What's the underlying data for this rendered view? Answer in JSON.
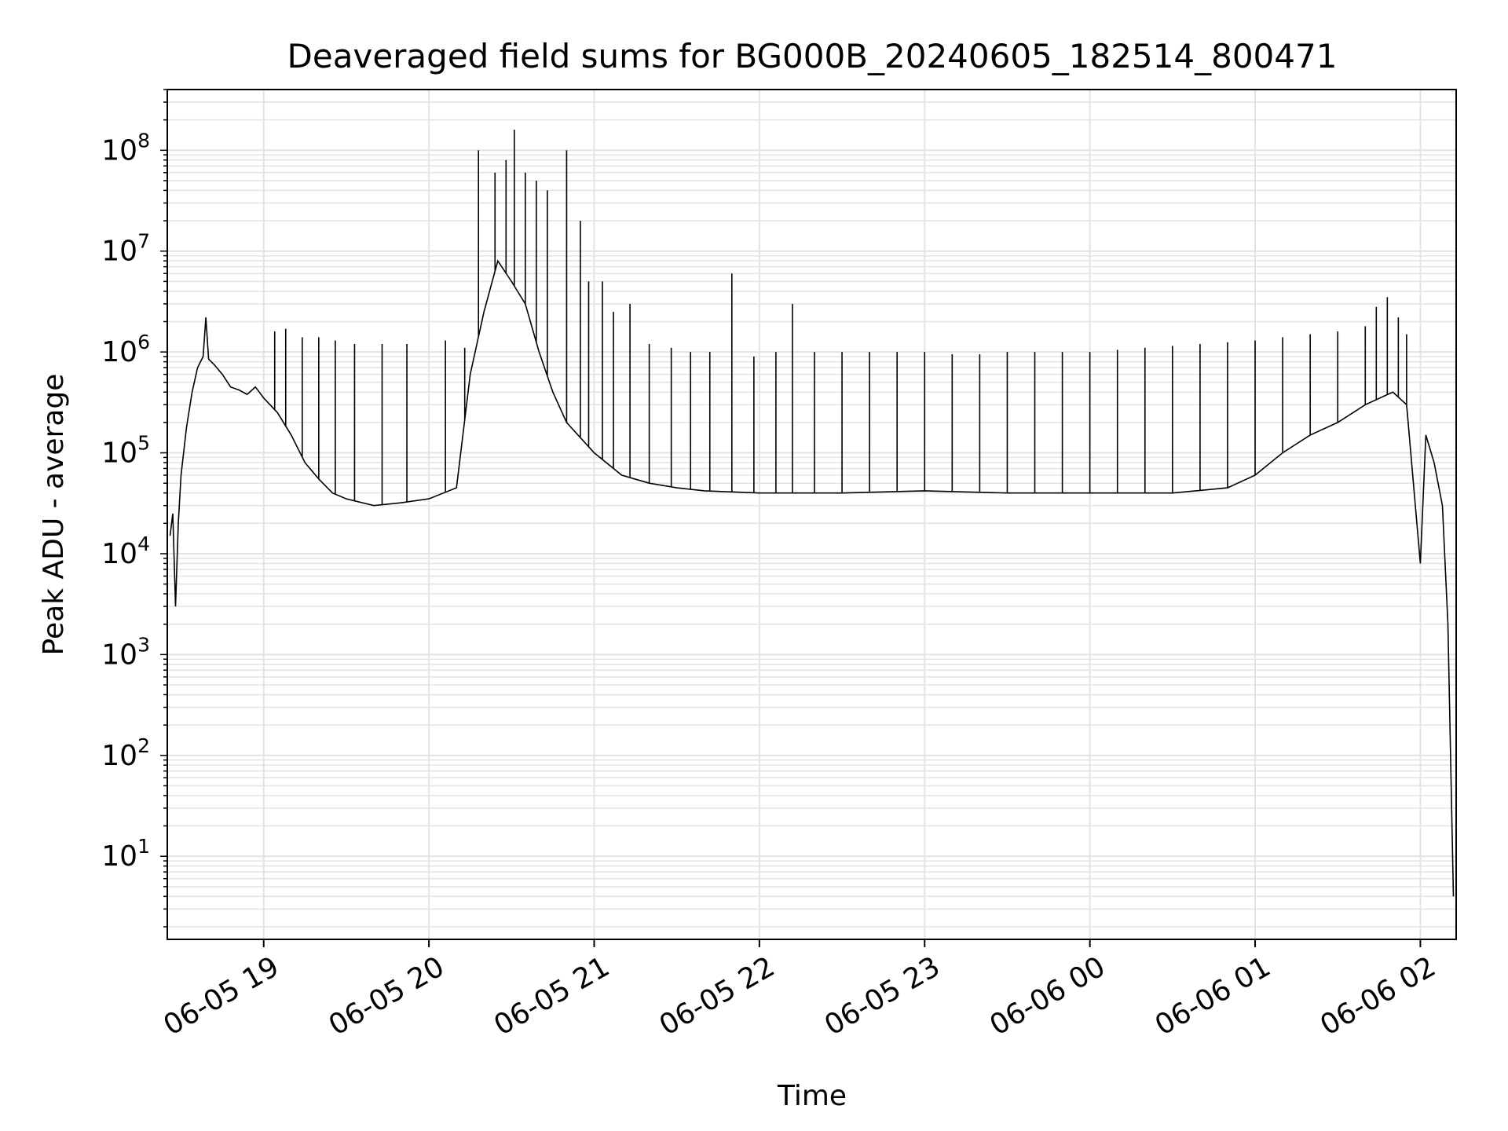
{
  "chart_data": {
    "type": "line",
    "title": "Deaveraged field sums for BG000B_20240605_182514_800471",
    "xlabel": "Time",
    "ylabel": "Peak ADU - average",
    "yscale": "log",
    "ylim": [
      1.5,
      400000000
    ],
    "xlim": [
      "06-05 18:25",
      "06-06 02:13"
    ],
    "grid": true,
    "line_color": "#000000",
    "x_ticks": [
      "06-05 19",
      "06-05 20",
      "06-05 21",
      "06-05 22",
      "06-05 23",
      "06-06 00",
      "06-06 01",
      "06-06 02"
    ],
    "y_ticks": [
      {
        "base": "10",
        "exp": "1"
      },
      {
        "base": "10",
        "exp": "2"
      },
      {
        "base": "10",
        "exp": "3"
      },
      {
        "base": "10",
        "exp": "4"
      },
      {
        "base": "10",
        "exp": "5"
      },
      {
        "base": "10",
        "exp": "6"
      },
      {
        "base": "10",
        "exp": "7"
      },
      {
        "base": "10",
        "exp": "8"
      }
    ],
    "series": [
      {
        "name": "",
        "points": [
          [
            "06-05 18:26",
            15000
          ],
          [
            "06-05 18:27",
            25000
          ],
          [
            "06-05 18:28",
            3000
          ],
          [
            "06-05 18:29",
            20000
          ],
          [
            "06-05 18:30",
            60000
          ],
          [
            "06-05 18:32",
            180000
          ],
          [
            "06-05 18:34",
            400000
          ],
          [
            "06-05 18:36",
            700000
          ],
          [
            "06-05 18:38",
            900000
          ],
          [
            "06-05 18:39",
            2200000
          ],
          [
            "06-05 18:40",
            850000
          ],
          [
            "06-05 18:42",
            750000
          ],
          [
            "06-05 18:45",
            600000
          ],
          [
            "06-05 18:48",
            450000
          ],
          [
            "06-05 18:51",
            420000
          ],
          [
            "06-05 18:54",
            380000
          ],
          [
            "06-05 18:57",
            450000
          ],
          [
            "06-05 19:00",
            350000
          ],
          [
            "06-05 19:05",
            250000
          ],
          [
            "06-05 19:10",
            150000
          ],
          [
            "06-05 19:15",
            80000
          ],
          [
            "06-05 19:20",
            55000
          ],
          [
            "06-05 19:25",
            40000
          ],
          [
            "06-05 19:30",
            35000
          ],
          [
            "06-05 19:40",
            30000
          ],
          [
            "06-05 19:50",
            32000
          ],
          [
            "06-05 20:00",
            35000
          ],
          [
            "06-05 20:10",
            45000
          ],
          [
            "06-05 20:15",
            600000
          ],
          [
            "06-05 20:20",
            2500000
          ],
          [
            "06-05 20:25",
            8000000
          ],
          [
            "06-05 20:30",
            5000000
          ],
          [
            "06-05 20:35",
            3000000
          ],
          [
            "06-05 20:40",
            1000000
          ],
          [
            "06-05 20:45",
            400000
          ],
          [
            "06-05 20:50",
            200000
          ],
          [
            "06-05 21:00",
            100000
          ],
          [
            "06-05 21:10",
            60000
          ],
          [
            "06-05 21:20",
            50000
          ],
          [
            "06-05 21:30",
            45000
          ],
          [
            "06-05 21:40",
            42000
          ],
          [
            "06-05 22:00",
            40000
          ],
          [
            "06-05 22:30",
            40000
          ],
          [
            "06-05 23:00",
            42000
          ],
          [
            "06-05 23:30",
            40000
          ],
          [
            "06-06 00:00",
            40000
          ],
          [
            "06-06 00:30",
            40000
          ],
          [
            "06-06 00:50",
            45000
          ],
          [
            "06-06 01:00",
            60000
          ],
          [
            "06-06 01:10",
            100000
          ],
          [
            "06-06 01:20",
            150000
          ],
          [
            "06-06 01:30",
            200000
          ],
          [
            "06-06 01:40",
            300000
          ],
          [
            "06-06 01:50",
            400000
          ],
          [
            "06-06 01:55",
            300000
          ],
          [
            "06-06 02:00",
            8000
          ],
          [
            "06-06 02:02",
            150000
          ],
          [
            "06-06 02:05",
            80000
          ],
          [
            "06-06 02:08",
            30000
          ],
          [
            "06-06 02:10",
            2000
          ],
          [
            "06-06 02:12",
            4
          ]
        ]
      }
    ],
    "spikes": [
      [
        "06-05 18:39",
        2200000
      ],
      [
        "06-05 19:04",
        1600000
      ],
      [
        "06-05 19:08",
        1700000
      ],
      [
        "06-05 19:14",
        1400000
      ],
      [
        "06-05 19:20",
        1400000
      ],
      [
        "06-05 19:26",
        1300000
      ],
      [
        "06-05 19:33",
        1200000
      ],
      [
        "06-05 19:43",
        1200000
      ],
      [
        "06-05 19:52",
        1200000
      ],
      [
        "06-05 20:06",
        1300000
      ],
      [
        "06-05 20:13",
        1100000
      ],
      [
        "06-05 20:18",
        100000000
      ],
      [
        "06-05 20:24",
        60000000
      ],
      [
        "06-05 20:28",
        80000000
      ],
      [
        "06-05 20:31",
        160000000
      ],
      [
        "06-05 20:35",
        60000000
      ],
      [
        "06-05 20:39",
        50000000
      ],
      [
        "06-05 20:43",
        40000000
      ],
      [
        "06-05 20:50",
        100000000
      ],
      [
        "06-05 20:55",
        20000000
      ],
      [
        "06-05 20:58",
        5000000
      ],
      [
        "06-05 21:03",
        5000000
      ],
      [
        "06-05 21:07",
        2500000
      ],
      [
        "06-05 21:13",
        3000000
      ],
      [
        "06-05 21:20",
        1200000
      ],
      [
        "06-05 21:28",
        1100000
      ],
      [
        "06-05 21:35",
        1000000
      ],
      [
        "06-05 21:42",
        1000000
      ],
      [
        "06-05 21:50",
        6000000
      ],
      [
        "06-05 21:58",
        900000
      ],
      [
        "06-05 22:06",
        1000000
      ],
      [
        "06-05 22:12",
        3000000
      ],
      [
        "06-05 22:20",
        1000000
      ],
      [
        "06-05 22:30",
        1000000
      ],
      [
        "06-05 22:40",
        1000000
      ],
      [
        "06-05 22:50",
        1000000
      ],
      [
        "06-05 23:00",
        1000000
      ],
      [
        "06-05 23:10",
        950000
      ],
      [
        "06-05 23:20",
        950000
      ],
      [
        "06-05 23:30",
        1000000
      ],
      [
        "06-05 23:40",
        1000000
      ],
      [
        "06-05 23:50",
        1000000
      ],
      [
        "06-06 00:00",
        1000000
      ],
      [
        "06-06 00:10",
        1050000
      ],
      [
        "06-06 00:20",
        1100000
      ],
      [
        "06-06 00:30",
        1150000
      ],
      [
        "06-06 00:40",
        1200000
      ],
      [
        "06-06 00:50",
        1250000
      ],
      [
        "06-06 01:00",
        1300000
      ],
      [
        "06-06 01:10",
        1400000
      ],
      [
        "06-06 01:20",
        1500000
      ],
      [
        "06-06 01:30",
        1600000
      ],
      [
        "06-06 01:40",
        1800000
      ],
      [
        "06-06 01:44",
        2800000
      ],
      [
        "06-06 01:48",
        3500000
      ],
      [
        "06-06 01:52",
        2200000
      ],
      [
        "06-06 01:55",
        1500000
      ]
    ]
  }
}
